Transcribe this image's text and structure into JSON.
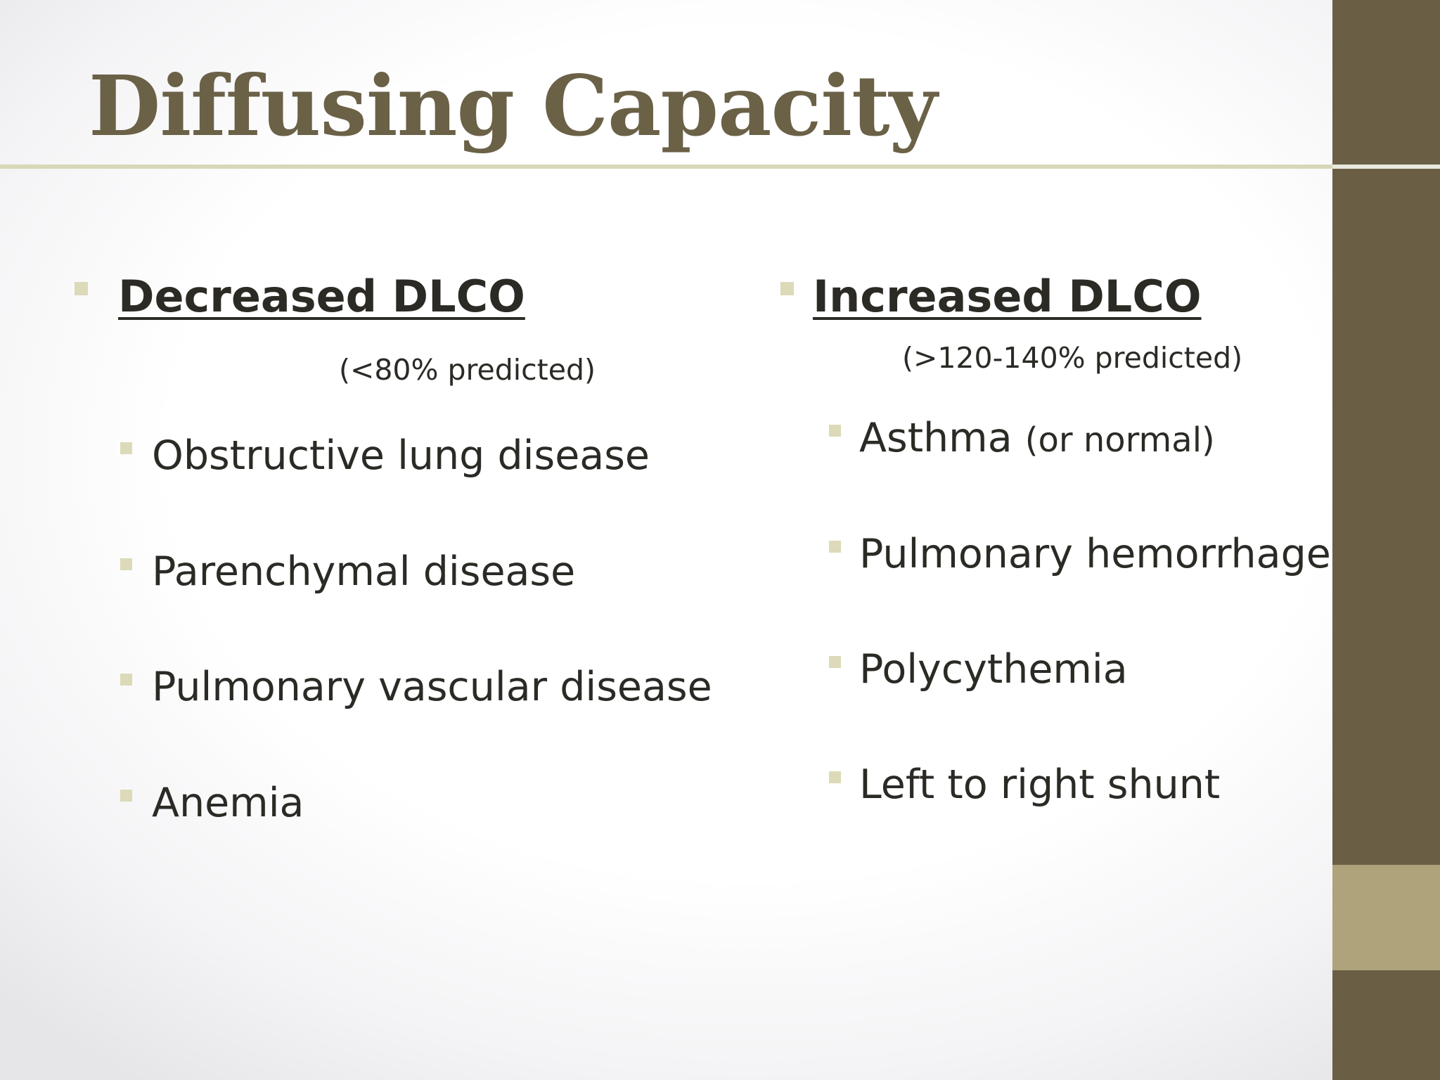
{
  "slide": {
    "title": "Diffusing Capacity",
    "left_column": {
      "heading": "Decreased DLCO",
      "subheading": "(<80% predicted)",
      "items": [
        "Obstructive lung disease",
        "Parenchymal disease",
        "Pulmonary vascular disease",
        "Anemia"
      ]
    },
    "right_column": {
      "heading": "Increased DLCO",
      "subheading": "(>120-140% predicted)",
      "items": [
        {
          "text": "Asthma",
          "note": "(or normal)"
        },
        {
          "text": "Pulmonary hemorrhage"
        },
        {
          "text": "Polycythemia"
        },
        {
          "text": "Left to right shunt"
        }
      ]
    }
  },
  "colors": {
    "title": "#6b6147",
    "sidebar_dark": "#6a5f45",
    "sidebar_light": "#aea37b",
    "bullet": "#dcdab8",
    "rule": "#d8d8b9",
    "text": "#2b2a25"
  }
}
